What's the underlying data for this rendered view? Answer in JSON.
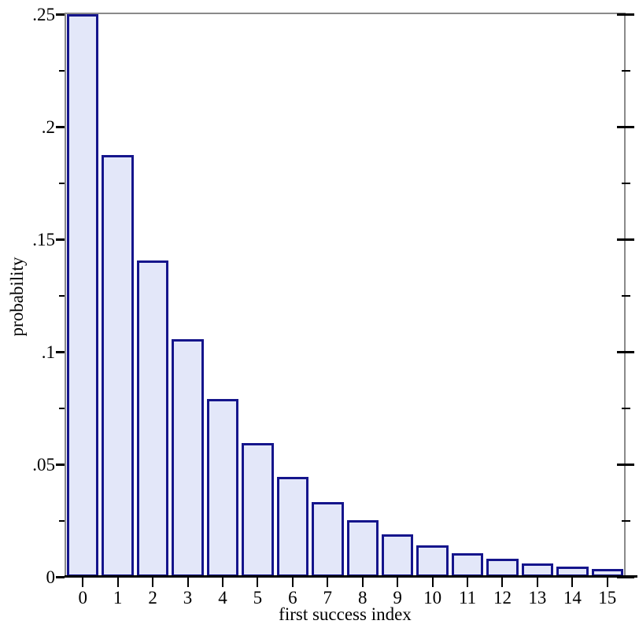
{
  "chart_data": {
    "type": "bar",
    "title": "",
    "xlabel": "first success index",
    "ylabel": "probability",
    "categories": [
      "0",
      "1",
      "2",
      "3",
      "4",
      "5",
      "6",
      "7",
      "8",
      "9",
      "10",
      "11",
      "12",
      "13",
      "14",
      "15"
    ],
    "values": [
      0.25,
      0.1875,
      0.140625,
      0.105469,
      0.079102,
      0.059326,
      0.044495,
      0.033371,
      0.025028,
      0.018771,
      0.014078,
      0.010559,
      0.007919,
      0.005939,
      0.004455,
      0.003341
    ],
    "ylim": [
      0,
      0.25
    ],
    "y_major_ticks": [
      {
        "value": 0.25,
        "label": ".25"
      },
      {
        "value": 0.2,
        "label": ".2"
      },
      {
        "value": 0.15,
        "label": ".15"
      },
      {
        "value": 0.1,
        "label": ".1"
      },
      {
        "value": 0.05,
        "label": ".05"
      },
      {
        "value": 0,
        "label": "0"
      }
    ],
    "y_minor_ticks": [
      0.225,
      0.175,
      0.125,
      0.075,
      0.025
    ],
    "grid": false,
    "legend": "none",
    "colors": {
      "bar_fill": "#e3e7f9",
      "bar_border": "#15158c",
      "frame": "#8a8a8a",
      "baseline": "#000000",
      "tick": "#000000",
      "text": "#000000",
      "background": "#ffffff"
    }
  }
}
